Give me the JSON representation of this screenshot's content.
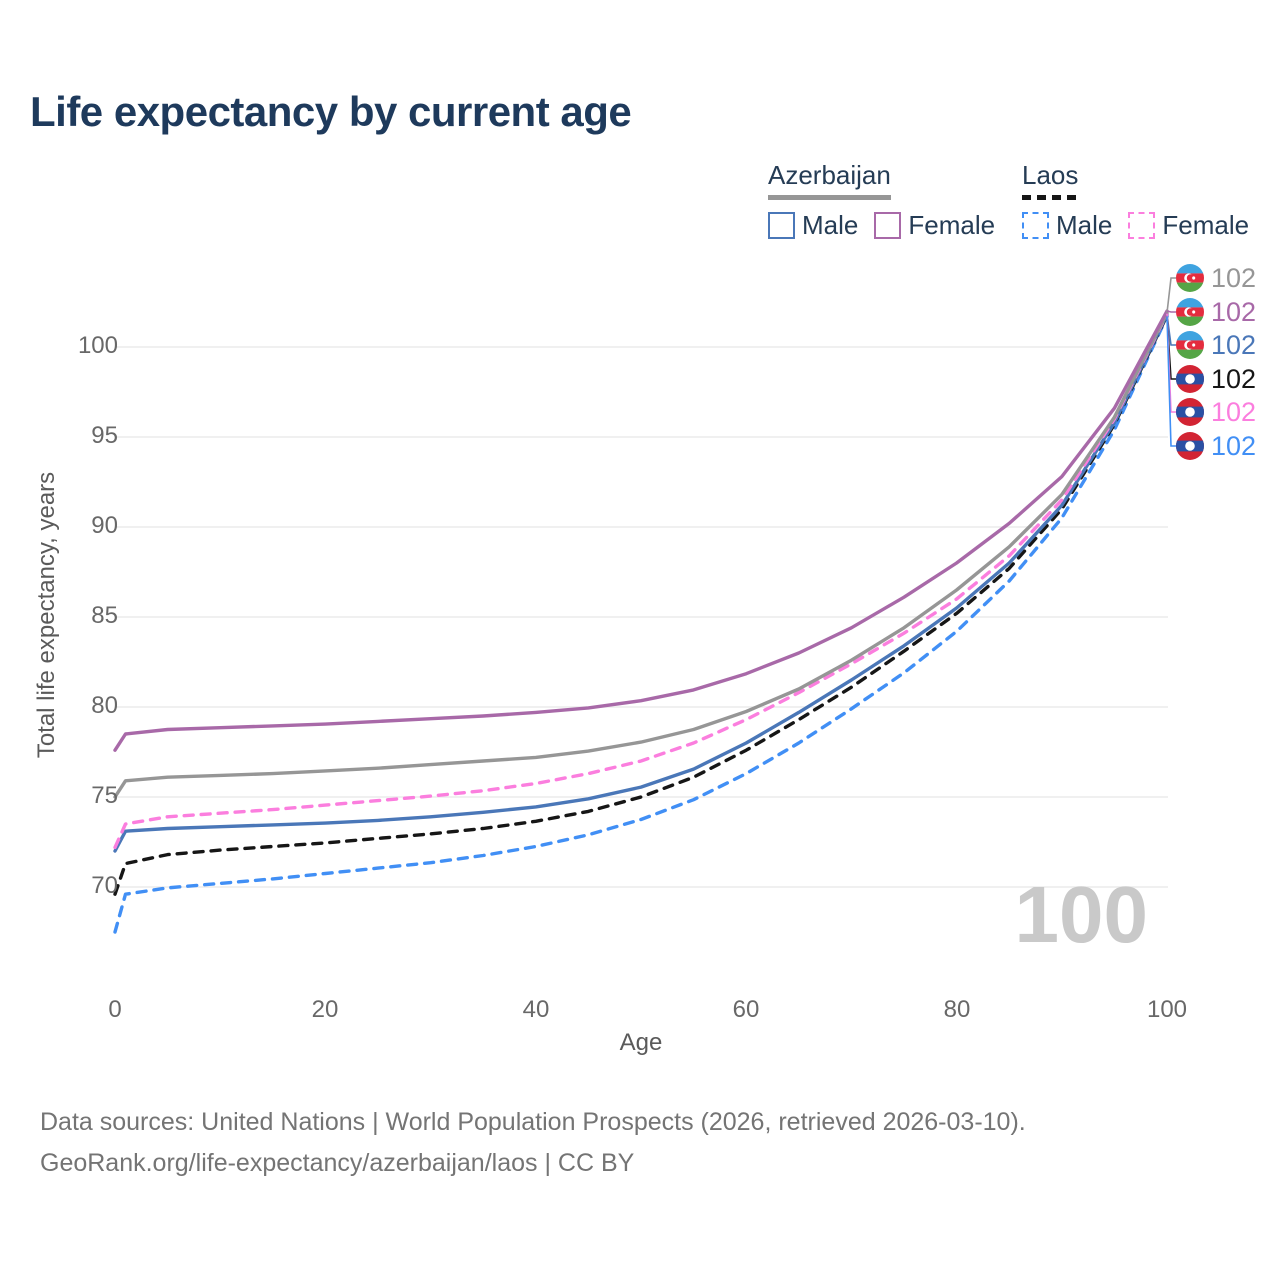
{
  "header": {
    "title": "Life expectancy by current age"
  },
  "legend": {
    "groups": [
      {
        "label": "Azerbaijan",
        "line_style": "solid",
        "entries": [
          {
            "label": "Male"
          },
          {
            "label": "Female"
          }
        ]
      },
      {
        "label": "Laos",
        "line_style": "dashed",
        "entries": [
          {
            "label": "Male"
          },
          {
            "label": "Female"
          }
        ]
      }
    ]
  },
  "footer": {
    "line1": "Data sources: United Nations | World Population Prospects (2026, retrieved 2026-03-10).",
    "line2": "GeoRank.org/life-expectancy/azerbaijan/laos | CC BY"
  },
  "chart_data": {
    "type": "line",
    "title": "Life expectancy by current age",
    "xlabel": "Age",
    "ylabel": "Total life expectancy, years",
    "xticks": [
      0,
      20,
      40,
      60,
      80,
      100
    ],
    "yticks": [
      70,
      75,
      80,
      85,
      90,
      95,
      100
    ],
    "xlim": [
      0,
      100
    ],
    "ylim": [
      66,
      103
    ],
    "grid": "horizontal",
    "legend_position": "top-right",
    "watermark": "100",
    "x": [
      0,
      1,
      5,
      10,
      15,
      20,
      25,
      30,
      35,
      40,
      45,
      50,
      55,
      60,
      65,
      70,
      75,
      80,
      85,
      90,
      95,
      100
    ],
    "series": [
      {
        "country": "Azerbaijan",
        "sex": "All",
        "color": "#969696",
        "line_style": "solid",
        "flag": "azerbaijan",
        "end_label": "102",
        "values": [
          75.0,
          75.9,
          76.1,
          76.2,
          76.3,
          76.45,
          76.6,
          76.8,
          77.0,
          77.2,
          77.55,
          78.05,
          78.75,
          79.75,
          81.0,
          82.6,
          84.4,
          86.5,
          88.9,
          91.8,
          96.1,
          101.9
        ]
      },
      {
        "country": "Azerbaijan",
        "sex": "Female",
        "color": "#a869a8",
        "line_style": "solid",
        "flag": "azerbaijan",
        "end_label": "102",
        "values": [
          77.6,
          78.5,
          78.75,
          78.85,
          78.95,
          79.05,
          79.2,
          79.35,
          79.5,
          79.7,
          79.95,
          80.35,
          80.95,
          81.85,
          83.0,
          84.4,
          86.1,
          88.0,
          90.2,
          92.8,
          96.6,
          102
        ]
      },
      {
        "country": "Azerbaijan",
        "sex": "Male",
        "color": "#4a77b8",
        "line_style": "solid",
        "flag": "azerbaijan",
        "end_label": "102",
        "values": [
          72.0,
          73.1,
          73.25,
          73.35,
          73.45,
          73.55,
          73.7,
          73.9,
          74.15,
          74.45,
          74.9,
          75.55,
          76.55,
          78.0,
          79.7,
          81.5,
          83.4,
          85.5,
          88.0,
          91.2,
          95.8,
          101.8
        ]
      },
      {
        "country": "Laos",
        "sex": "All",
        "color": "#161616",
        "line_style": "dashed",
        "flag": "laos",
        "end_label": "102",
        "values": [
          69.6,
          71.3,
          71.8,
          72.05,
          72.25,
          72.45,
          72.7,
          72.95,
          73.25,
          73.65,
          74.2,
          75.0,
          76.1,
          77.6,
          79.3,
          81.1,
          83.1,
          85.2,
          87.7,
          91.0,
          95.7,
          101.75
        ]
      },
      {
        "country": "Laos",
        "sex": "Female",
        "color": "#fb7ede",
        "line_style": "dashed",
        "flag": "laos",
        "end_label": "102",
        "values": [
          72.2,
          73.5,
          73.9,
          74.1,
          74.3,
          74.55,
          74.8,
          75.05,
          75.35,
          75.75,
          76.3,
          77.0,
          78.0,
          79.3,
          80.8,
          82.4,
          84.1,
          86.0,
          88.4,
          91.5,
          96.0,
          101.85
        ]
      },
      {
        "country": "Laos",
        "sex": "Male",
        "color": "#418ff5",
        "line_style": "dashed",
        "flag": "laos",
        "end_label": "102",
        "values": [
          67.5,
          69.6,
          69.95,
          70.2,
          70.45,
          70.75,
          71.05,
          71.35,
          71.75,
          72.25,
          72.9,
          73.75,
          74.85,
          76.3,
          78.0,
          79.9,
          81.9,
          84.2,
          87.0,
          90.5,
          95.4,
          101.7
        ]
      }
    ]
  }
}
